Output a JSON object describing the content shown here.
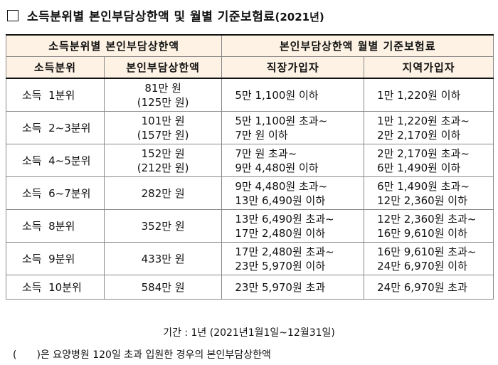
{
  "title": {
    "main": "소득분위별 본인부담상한액 및 월별 기준보험료",
    "year": "(2021년)"
  },
  "table": {
    "group_left": "소득분위별 본인부담상한액",
    "group_right": "본인부담상한액 월별 기준보험료",
    "col_grade": "소득분위",
    "col_cap": "본인부담상한액",
    "col_workplace": "직장가입자",
    "col_regional": "지역가입자",
    "rows": [
      {
        "grade": "소득  1분위",
        "cap": [
          "81만 원",
          "(125만 원)"
        ],
        "work": [
          "5만 1,100원 이하"
        ],
        "region": [
          "1만 1,220원 이하"
        ]
      },
      {
        "grade": "소득  2~3분위",
        "cap": [
          "101만 원",
          "(157만 원)"
        ],
        "work": [
          "5만 1,100원 초과~",
          "7만 원 이하"
        ],
        "region": [
          "1만 1,220원 초과~",
          "2만 2,170원 이하"
        ]
      },
      {
        "grade": "소득  4~5분위",
        "cap": [
          "152만 원",
          "(212만 원)"
        ],
        "work": [
          "7만 원 초과~",
          "9만 4,480원 이하"
        ],
        "region": [
          "2만 2,170원 초과~",
          "6만 1,490원 이하"
        ]
      },
      {
        "grade": "소득  6~7분위",
        "cap": [
          "282만 원"
        ],
        "work": [
          "9만 4,480원 초과~",
          "13만 6,490원 이하"
        ],
        "region": [
          "6만 1,490원 초과~",
          "12만 2,360원 이하"
        ]
      },
      {
        "grade": "소득  8분위",
        "cap": [
          "352만 원"
        ],
        "work": [
          "13만 6,490원 초과~",
          "17만 2,480원 이하"
        ],
        "region": [
          "12만 2,360원 초과~",
          "16만 9,610원 이하"
        ]
      },
      {
        "grade": "소득  9분위",
        "cap": [
          "433만 원"
        ],
        "work": [
          "17만 2,480원 초과~",
          "23만 5,970원 이하"
        ],
        "region": [
          "16만 9,610원 초과~",
          "24만 6,970원 이하"
        ]
      },
      {
        "grade": "소득  10분위",
        "cap": [
          "584만 원"
        ],
        "work": [
          "23만 5,970원 초과"
        ],
        "region": [
          "24만 6,970원 초과"
        ]
      }
    ]
  },
  "notes": {
    "period": "기간 : 1년 (2021년1월1일~12월31일)",
    "paren_open": "(",
    "paren_text": ")은 요양병원 120일 초과 입원한 경우의 본인부담상한액"
  }
}
